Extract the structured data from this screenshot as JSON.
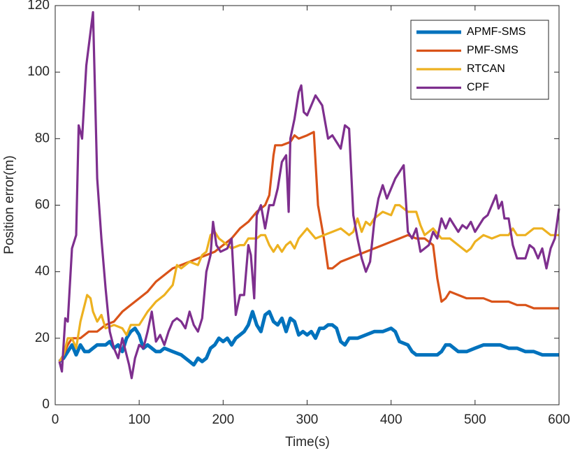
{
  "chart_data": {
    "type": "line",
    "xlabel": "Time(s)",
    "ylabel": "Position error(m)",
    "xlim": [
      0,
      600
    ],
    "ylim": [
      0,
      120
    ],
    "xticks": [
      0,
      100,
      200,
      300,
      400,
      500,
      600
    ],
    "yticks": [
      0,
      20,
      40,
      60,
      80,
      100,
      120
    ],
    "grid": false,
    "legend": "top-right",
    "series": [
      {
        "name": "APMF-SMS",
        "color": "#0072bd",
        "x": [
          5,
          10,
          15,
          20,
          25,
          30,
          35,
          40,
          45,
          50,
          60,
          65,
          70,
          75,
          80,
          85,
          90,
          95,
          100,
          105,
          110,
          115,
          120,
          125,
          130,
          140,
          150,
          160,
          165,
          170,
          175,
          180,
          185,
          190,
          195,
          200,
          205,
          210,
          215,
          220,
          225,
          230,
          235,
          240,
          245,
          250,
          255,
          260,
          265,
          270,
          275,
          280,
          285,
          290,
          295,
          300,
          305,
          310,
          315,
          320,
          325,
          330,
          335,
          340,
          345,
          350,
          360,
          370,
          380,
          390,
          400,
          405,
          410,
          420,
          425,
          430,
          440,
          450,
          455,
          460,
          465,
          470,
          475,
          480,
          490,
          500,
          510,
          520,
          530,
          540,
          550,
          560,
          570,
          580,
          590,
          600
        ],
        "values": [
          13,
          14,
          16,
          18,
          15,
          18,
          16,
          16,
          17,
          18,
          18,
          19,
          17,
          18,
          16,
          20,
          22,
          23,
          21,
          17,
          18,
          17,
          16,
          16,
          17,
          16,
          15,
          13,
          12,
          14,
          13,
          14,
          17,
          18,
          20,
          19,
          20,
          18,
          20,
          21,
          22,
          24,
          28,
          24,
          22,
          27,
          28,
          25,
          24,
          26,
          22,
          26,
          25,
          21,
          22,
          21,
          22,
          20,
          23,
          23,
          24,
          24,
          23,
          19,
          18,
          20,
          20,
          21,
          22,
          22,
          23,
          22,
          19,
          18,
          16,
          15,
          15,
          15,
          15,
          16,
          18,
          18,
          17,
          16,
          16,
          17,
          18,
          18,
          18,
          17,
          17,
          16,
          16,
          15,
          15,
          15
        ]
      },
      {
        "name": "PMF-SMS",
        "color": "#d95319",
        "x": [
          5,
          10,
          15,
          20,
          30,
          40,
          50,
          60,
          70,
          80,
          90,
          100,
          110,
          120,
          130,
          140,
          150,
          160,
          170,
          180,
          190,
          200,
          210,
          220,
          230,
          240,
          250,
          255,
          260,
          262,
          270,
          280,
          285,
          290,
          300,
          308,
          313,
          320,
          325,
          330,
          340,
          350,
          360,
          370,
          380,
          390,
          400,
          410,
          420,
          430,
          440,
          450,
          455,
          460,
          465,
          470,
          480,
          490,
          500,
          510,
          520,
          530,
          540,
          550,
          560,
          570,
          580,
          590,
          600
        ],
        "values": [
          13,
          15,
          18,
          20,
          20,
          22,
          22,
          24,
          25,
          28,
          30,
          32,
          34,
          37,
          39,
          41,
          42,
          43,
          44,
          45,
          46,
          48,
          50,
          53,
          55,
          58,
          60,
          63,
          75,
          78,
          78,
          79,
          81,
          80,
          81,
          82,
          60,
          50,
          41,
          41,
          43,
          44,
          45,
          46,
          47,
          48,
          49,
          50,
          51,
          50,
          50,
          48,
          38,
          31,
          32,
          34,
          33,
          32,
          32,
          32,
          31,
          31,
          31,
          30,
          30,
          29,
          29,
          29,
          29
        ]
      },
      {
        "name": "RTCAN",
        "color": "#edb120",
        "x": [
          5,
          10,
          15,
          20,
          25,
          30,
          35,
          38,
          42,
          45,
          50,
          55,
          60,
          70,
          80,
          85,
          90,
          100,
          110,
          120,
          130,
          140,
          145,
          150,
          160,
          170,
          175,
          180,
          185,
          190,
          195,
          200,
          210,
          220,
          225,
          230,
          240,
          245,
          250,
          255,
          260,
          265,
          270,
          275,
          280,
          285,
          290,
          300,
          310,
          320,
          330,
          340,
          350,
          355,
          360,
          365,
          370,
          375,
          380,
          390,
          400,
          405,
          410,
          420,
          430,
          435,
          440,
          450,
          460,
          470,
          480,
          490,
          495,
          500,
          510,
          520,
          530,
          540,
          545,
          550,
          560,
          570,
          580,
          590,
          600
        ],
        "values": [
          13,
          15,
          20,
          20,
          17,
          25,
          30,
          33,
          32,
          28,
          25,
          27,
          23,
          24,
          23,
          21,
          24,
          24,
          28,
          31,
          33,
          36,
          42,
          41,
          43,
          42,
          45,
          46,
          51,
          52,
          50,
          49,
          47,
          48,
          48,
          50,
          50,
          51,
          51,
          48,
          46,
          48,
          46,
          48,
          49,
          47,
          50,
          53,
          50,
          51,
          52,
          53,
          51,
          52,
          56,
          52,
          55,
          54,
          56,
          58,
          57,
          60,
          60,
          58,
          58,
          54,
          51,
          53,
          50,
          50,
          48,
          46,
          47,
          49,
          51,
          50,
          51,
          51,
          53,
          51,
          51,
          53,
          53,
          51,
          51
        ]
      },
      {
        "name": "CPF",
        "color": "#7e2f8e",
        "x": [
          5,
          8,
          12,
          15,
          20,
          25,
          28,
          32,
          37,
          42,
          45,
          50,
          55,
          60,
          65,
          70,
          75,
          80,
          85,
          88,
          91,
          95,
          100,
          105,
          110,
          115,
          120,
          125,
          130,
          135,
          140,
          145,
          150,
          155,
          160,
          165,
          170,
          175,
          180,
          185,
          188,
          192,
          197,
          205,
          210,
          215,
          220,
          225,
          230,
          233,
          237,
          240,
          245,
          250,
          255,
          260,
          265,
          270,
          275,
          278,
          280,
          285,
          290,
          293,
          296,
          300,
          305,
          310,
          318,
          325,
          330,
          335,
          340,
          345,
          350,
          355,
          360,
          365,
          370,
          375,
          380,
          385,
          390,
          395,
          400,
          405,
          410,
          415,
          420,
          425,
          430,
          435,
          440,
          445,
          450,
          455,
          460,
          465,
          470,
          475,
          480,
          485,
          490,
          495,
          500,
          505,
          510,
          515,
          520,
          525,
          528,
          532,
          535,
          540,
          545,
          550,
          555,
          560,
          565,
          570,
          575,
          580,
          585,
          590,
          595,
          600
        ],
        "values": [
          13,
          10,
          26,
          25,
          47,
          51,
          84,
          80,
          102,
          112,
          118,
          68,
          50,
          35,
          22,
          17,
          14,
          20,
          15,
          12,
          8,
          14,
          18,
          17,
          22,
          28,
          19,
          21,
          18,
          22,
          25,
          26,
          25,
          23,
          28,
          24,
          22,
          26,
          40,
          45,
          55,
          48,
          46,
          47,
          50,
          27,
          33,
          33,
          48,
          45,
          32,
          57,
          60,
          53,
          60,
          60,
          65,
          73,
          75,
          58,
          80,
          86,
          94,
          96,
          88,
          87,
          90,
          93,
          90,
          80,
          81,
          79,
          77,
          84,
          83,
          57,
          50,
          44,
          40,
          43,
          55,
          62,
          66,
          62,
          65,
          68,
          70,
          72,
          52,
          50,
          53,
          46,
          47,
          48,
          52,
          50,
          56,
          53,
          56,
          54,
          52,
          54,
          53,
          55,
          52,
          54,
          56,
          57,
          60,
          63,
          59,
          61,
          56,
          56,
          48,
          44,
          44,
          44,
          48,
          47,
          44,
          47,
          41,
          47,
          50,
          59
        ]
      }
    ]
  }
}
